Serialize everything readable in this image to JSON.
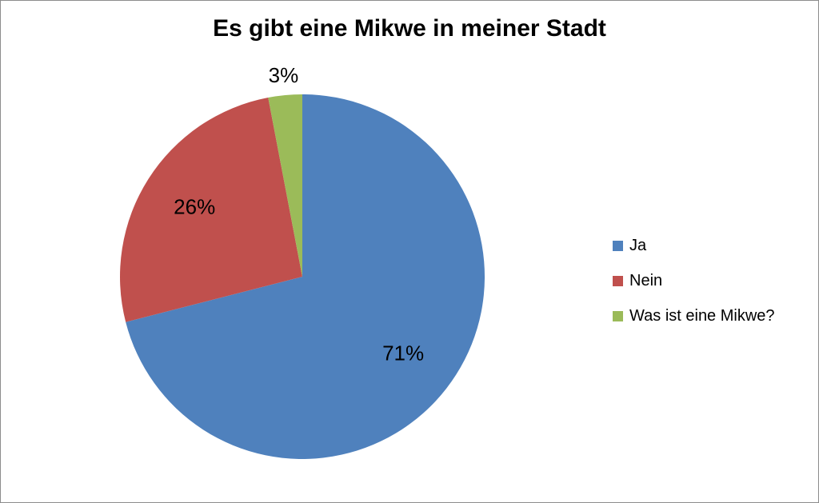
{
  "chart_data": {
    "type": "pie",
    "title": "Es gibt eine Mikwe in meiner Stadt",
    "categories": [
      "Ja",
      "Nein",
      "Was ist eine Mikwe?"
    ],
    "values": [
      71,
      26,
      3
    ],
    "data_labels": [
      "71%",
      "26%",
      "3%"
    ],
    "colors": [
      "#4f81bd",
      "#c0504d",
      "#9bbb59"
    ],
    "legend_position": "right"
  }
}
